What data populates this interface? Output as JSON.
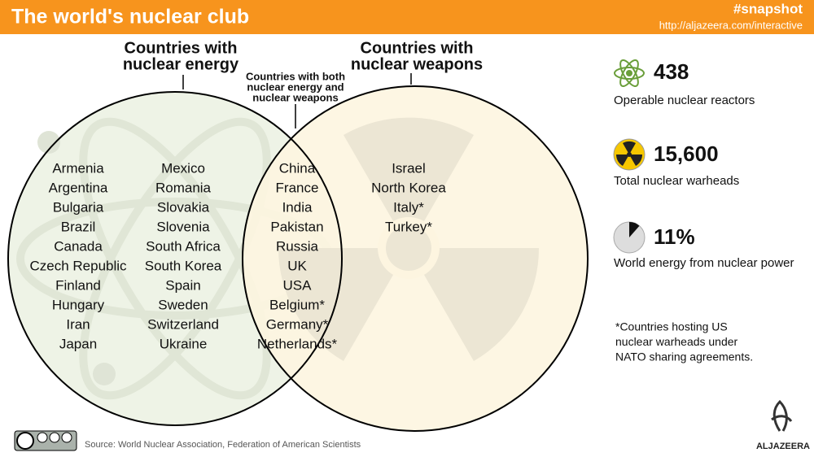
{
  "header": {
    "title": "The world's nuclear club",
    "hashtag": "#snapshot",
    "url": "http://aljazeera.com/interactive"
  },
  "venn": {
    "energy": {
      "title_lines": [
        "Countries with",
        "nuclear energy"
      ],
      "countries": [
        [
          "Armenia",
          "Argentina",
          "Bulgaria",
          "Brazil",
          "Canada",
          "Czech Republic",
          "Finland",
          "Hungary",
          "Iran",
          "Japan"
        ],
        [
          "Mexico",
          "Romania",
          "Slovakia",
          "Slovenia",
          "South Africa",
          "South Korea",
          "Spain",
          "Sweden",
          "Switzerland",
          "Ukraine"
        ]
      ]
    },
    "both": {
      "title_lines": [
        "Countries with both",
        "nuclear energy and",
        "nuclear weapons"
      ],
      "countries": [
        "China",
        "France",
        "India",
        "Pakistan",
        "Russia",
        "UK",
        "USA",
        "Belgium*",
        "Germany*",
        "Netherlands*"
      ]
    },
    "weapons": {
      "title_lines": [
        "Countries with",
        "nuclear weapons"
      ],
      "countries": [
        "Israel",
        "North Korea",
        "Italy*",
        "Turkey*"
      ]
    }
  },
  "stats": [
    {
      "value": "438",
      "label": "Operable nuclear reactors"
    },
    {
      "value": "15,600",
      "label": "Total nuclear warheads"
    },
    {
      "value": "11%",
      "label": "World energy from nuclear power"
    }
  ],
  "footnote_lines": [
    "*Countries hosting US",
    "nuclear warheads under",
    "NATO sharing agreements."
  ],
  "source": "Source: World Nuclear Association, Federation of American Scientists",
  "logo": "ALJAZEERA"
}
